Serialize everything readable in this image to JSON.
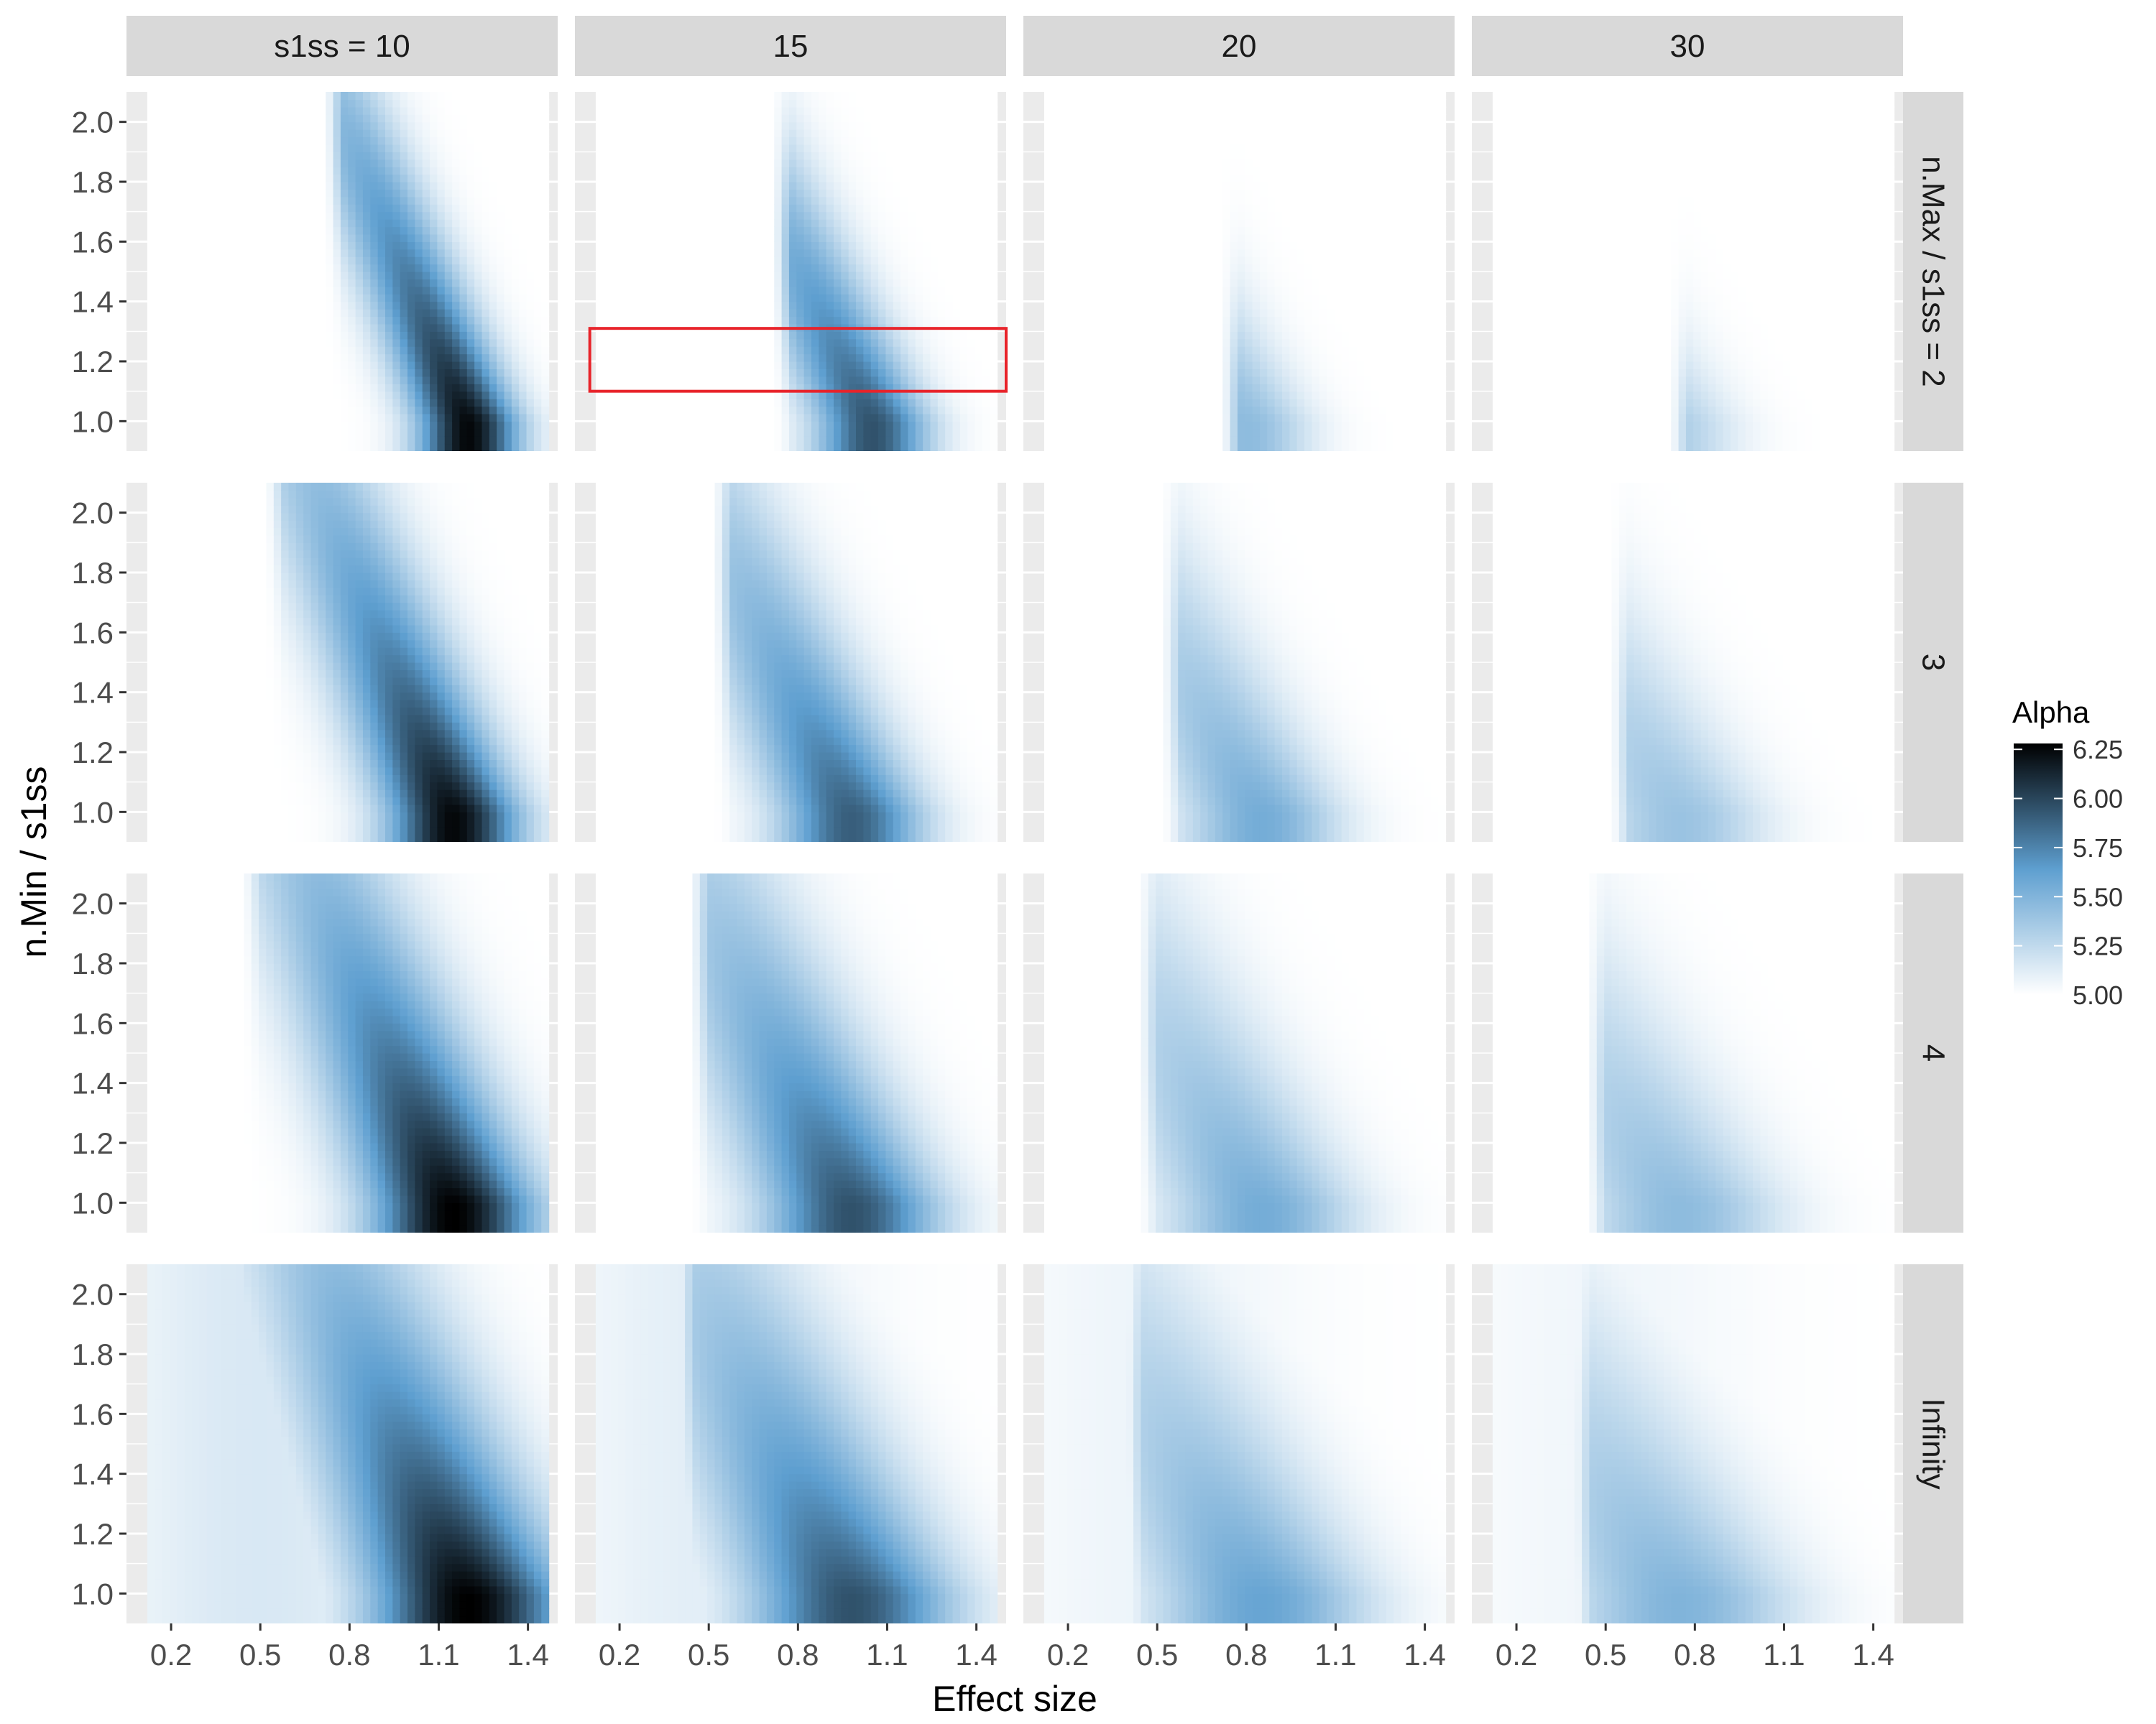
{
  "chart_data": {
    "type": "heatmap",
    "facet_cols": {
      "labels": [
        "s1ss = 10",
        "15",
        "20",
        "30"
      ],
      "s1ss": [
        10,
        15,
        20,
        30
      ]
    },
    "facet_rows": {
      "labels": [
        "n.Max / s1ss = 2",
        "3",
        "4",
        "Infinity"
      ]
    },
    "xlabel": "Effect size",
    "ylabel": "n.Min / s1ss",
    "x_ticks": [
      "0.2",
      "0.5",
      "0.8",
      "1.1",
      "1.4"
    ],
    "y_ticks": [
      "1.0",
      "1.2",
      "1.4",
      "1.6",
      "1.8",
      "2.0"
    ],
    "xlim": [
      0.05,
      1.5
    ],
    "ylim": [
      0.9,
      2.1
    ],
    "legend": {
      "title": "Alpha",
      "ticks": [
        "5.00",
        "5.25",
        "5.50",
        "5.75",
        "6.00",
        "6.25"
      ],
      "range": [
        5.0,
        6.28
      ],
      "placement": "right",
      "colors": [
        "#ffffff",
        "#5e9fd0",
        "#000000"
      ]
    },
    "peak_alpha": [
      [
        6.25,
        5.95,
        5.45,
        5.35
      ],
      [
        6.25,
        5.9,
        5.55,
        5.4
      ],
      [
        6.28,
        5.95,
        5.55,
        5.45
      ],
      [
        6.28,
        5.95,
        5.6,
        5.5
      ]
    ],
    "peak_effect_size": [
      [
        1.2,
        1.05,
        0.8,
        0.7
      ],
      [
        1.15,
        0.98,
        0.85,
        0.75
      ],
      [
        1.15,
        0.98,
        0.85,
        0.75
      ],
      [
        1.2,
        0.98,
        0.85,
        0.75
      ]
    ],
    "effect_range": [
      [
        0.78,
        1.5
      ],
      [
        0.58,
        1.5
      ],
      [
        0.5,
        1.5
      ],
      [
        0.45,
        1.5
      ]
    ],
    "highlight_box": {
      "row": 0,
      "col": 1,
      "x_range": [
        0.1,
        1.5
      ],
      "y_range": [
        1.1,
        1.31
      ],
      "color": "#e8232a"
    }
  }
}
